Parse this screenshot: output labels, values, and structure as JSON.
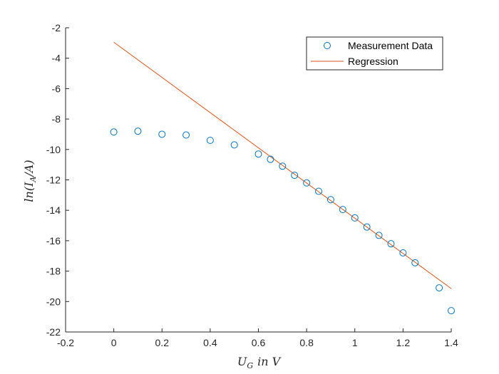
{
  "chart_data": {
    "type": "scatter",
    "xlabel": "U_G in V",
    "ylabel": "ln(I_A/A)",
    "xlim": [
      -0.2,
      1.4
    ],
    "ylim": [
      -22,
      -2
    ],
    "xticks": [
      -0.2,
      0,
      0.2,
      0.4,
      0.6,
      0.8,
      1,
      1.2,
      1.4
    ],
    "xtick_labels": [
      "-0.2",
      "0",
      "0.2",
      "0.4",
      "0.6",
      "0.8",
      "1",
      "1.2",
      "1.4"
    ],
    "yticks": [
      -22,
      -20,
      -18,
      -16,
      -14,
      -12,
      -10,
      -8,
      -6,
      -4,
      -2
    ],
    "ytick_labels": [
      "-22",
      "-20",
      "-18",
      "-16",
      "-14",
      "-12",
      "-10",
      "-8",
      "-6",
      "-4",
      "-2"
    ],
    "grid": false,
    "legend_position": "top-right",
    "series": [
      {
        "name": "Measurement Data",
        "kind": "markers",
        "color": "#0072BD",
        "x": [
          0,
          0.1,
          0.2,
          0.3,
          0.4,
          0.5,
          0.6,
          0.65,
          0.7,
          0.75,
          0.8,
          0.85,
          0.9,
          0.95,
          1.0,
          1.05,
          1.1,
          1.15,
          1.2,
          1.25,
          1.35,
          1.4
        ],
        "y": [
          -8.85,
          -8.8,
          -9.0,
          -9.05,
          -9.4,
          -9.7,
          -10.3,
          -10.65,
          -11.1,
          -11.7,
          -12.2,
          -12.75,
          -13.3,
          -13.95,
          -14.5,
          -15.1,
          -15.65,
          -16.2,
          -16.8,
          -17.45,
          -19.1,
          -20.6
        ]
      },
      {
        "name": "Regression",
        "kind": "line",
        "color": "#D95319",
        "x": [
          0,
          1.4
        ],
        "y": [
          -2.95,
          -19.15
        ]
      }
    ]
  }
}
